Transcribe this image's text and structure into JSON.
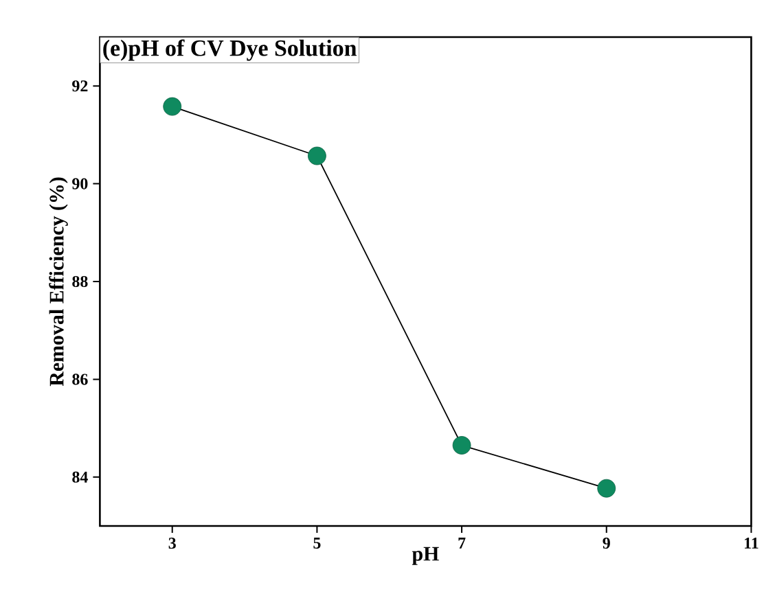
{
  "chart_data": {
    "type": "line",
    "title": "(e)pH of CV Dye Solution",
    "xlabel": "pH",
    "ylabel": "Removal Efficiency (%)",
    "x": [
      3,
      5,
      7,
      9
    ],
    "series": [
      {
        "color": "#0f8a5f",
        "values": [
          91.58,
          90.57,
          84.65,
          83.77
        ]
      }
    ],
    "xlim": [
      2,
      11
    ],
    "ylim": [
      83,
      93
    ],
    "xticks": [
      3,
      5,
      7,
      9,
      11
    ],
    "yticks": [
      84,
      86,
      88,
      90,
      92
    ],
    "marker": "circle",
    "line_style": "solid",
    "grid": false
  }
}
